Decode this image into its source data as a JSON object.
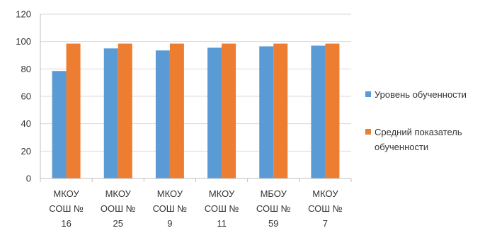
{
  "chart_data": {
    "type": "bar",
    "categories": [
      [
        "МКОУ",
        "СОШ №",
        "16"
      ],
      [
        "МКОУ",
        "ООШ №",
        "25"
      ],
      [
        "МКОУ",
        "СОШ №",
        "9"
      ],
      [
        "МКОУ",
        "СОШ №",
        "11"
      ],
      [
        "МБОУ",
        "СОШ №",
        "59"
      ],
      [
        "МКОУ",
        "СОШ №",
        "7"
      ]
    ],
    "series": [
      {
        "name": "Уровень обученности",
        "color": "#5b9bd5",
        "values": [
          78.5,
          95,
          93.5,
          95.5,
          96.5,
          97
        ]
      },
      {
        "name": "Средний показатель обученности",
        "legend_lines": [
          "Средний показатель",
          "обученности"
        ],
        "color": "#ed7d31",
        "values": [
          98.5,
          98.5,
          98.5,
          98.5,
          98.5,
          98.5
        ]
      }
    ],
    "y_ticks": [
      0,
      20,
      40,
      60,
      80,
      100,
      120
    ],
    "ylim": [
      0,
      120
    ],
    "grid": true,
    "legend_position": "right"
  }
}
